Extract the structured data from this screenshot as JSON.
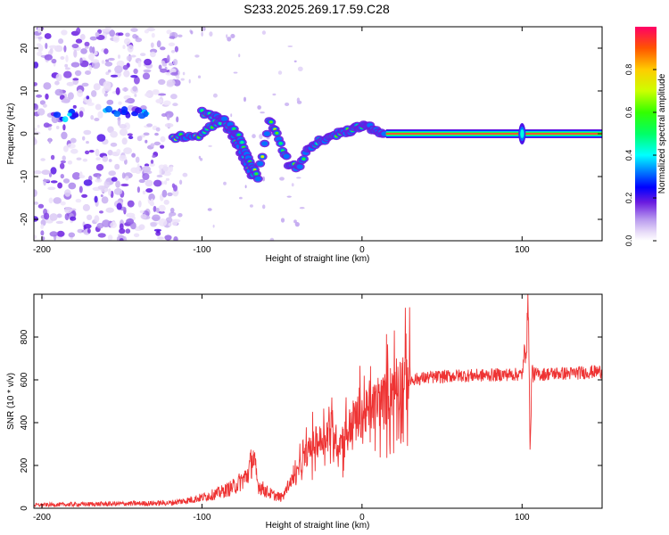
{
  "title": "S233.2025.269.17.59.C28",
  "chart_data": [
    {
      "type": "heatmap",
      "title": "S233.2025.269.17.59.C28",
      "xlabel": "Height of straight line (km)",
      "ylabel": "Frequency (Hz)",
      "xlim": [
        -205,
        150
      ],
      "ylim": [
        -25,
        25
      ],
      "xticks": [
        -200,
        -100,
        0,
        100
      ],
      "yticks": [
        -20,
        -10,
        0,
        10,
        20
      ],
      "noise_region_km": [
        -205,
        -115
      ],
      "ridge": {
        "x_km": [
          -118,
          -110,
          -100,
          -92,
          -86,
          -80,
          -75,
          -70,
          -65,
          -58,
          -52,
          -46,
          -40,
          -34,
          -28,
          -22,
          -16,
          -10,
          -5,
          0,
          5,
          10,
          15
        ],
        "freq_hz": [
          -1,
          -0.5,
          -0.5,
          2.5,
          3,
          1,
          -2,
          -6,
          -10,
          3,
          -1,
          -7,
          -8,
          -4,
          -2,
          -1,
          0,
          0.5,
          1,
          2,
          1.5,
          0.5,
          0.2
        ]
      },
      "ridge_upper_branch": {
        "x_km": [
          -100,
          -92,
          -85,
          -80,
          -76,
          -72,
          -67
        ],
        "freq_hz": [
          5,
          4,
          2,
          -1,
          -4,
          -7,
          -11
        ]
      },
      "clusters": [
        {
          "x_km": -140,
          "freq_hz": 5
        },
        {
          "x_km": -155,
          "freq_hz": 5
        },
        {
          "x_km": -185,
          "freq_hz": 4
        }
      ],
      "carrier": {
        "freq_hz": 0,
        "from_km": 15,
        "to_km": 150
      },
      "spike_km": 100,
      "colorbar": {
        "label": "Normalized spectral amplitude",
        "range": [
          0.0,
          1.0
        ],
        "ticks": [
          "0.0",
          "0.2",
          "0.4",
          "0.6",
          "0.8"
        ],
        "tick_values": [
          0.0,
          0.2,
          0.4,
          0.6,
          0.8
        ]
      }
    },
    {
      "type": "line",
      "xlabel": "Height of straight line (km)",
      "ylabel": "SNR (10 * v/v)",
      "xlim": [
        -205,
        150
      ],
      "ylim": [
        0,
        1000
      ],
      "xticks": [
        -200,
        -100,
        0,
        100
      ],
      "yticks": [
        0,
        200,
        400,
        600,
        800
      ],
      "series": [
        {
          "name": "SNR",
          "color": "#ee3333",
          "x": [
            -205,
            -180,
            -160,
            -140,
            -120,
            -110,
            -100,
            -90,
            -80,
            -72,
            -68,
            -65,
            -60,
            -55,
            -50,
            -45,
            -40,
            -35,
            -30,
            -25,
            -20,
            -15,
            -10,
            -5,
            0,
            5,
            10,
            15,
            20,
            25,
            30,
            40,
            50,
            60,
            70,
            80,
            90,
            95,
            100,
            103,
            104,
            105,
            106,
            110,
            120,
            130,
            140,
            150
          ],
          "y": [
            15,
            18,
            20,
            22,
            25,
            35,
            50,
            70,
            100,
            150,
            240,
            110,
            80,
            60,
            50,
            120,
            170,
            250,
            300,
            320,
            380,
            300,
            350,
            420,
            430,
            460,
            490,
            520,
            560,
            585,
            600,
            610,
            615,
            620,
            620,
            622,
            625,
            625,
            625,
            800,
            990,
            230,
            630,
            625,
            630,
            630,
            635,
            640
          ]
        }
      ]
    }
  ],
  "colors": {
    "line": "#ee3333",
    "axis": "#000000"
  }
}
